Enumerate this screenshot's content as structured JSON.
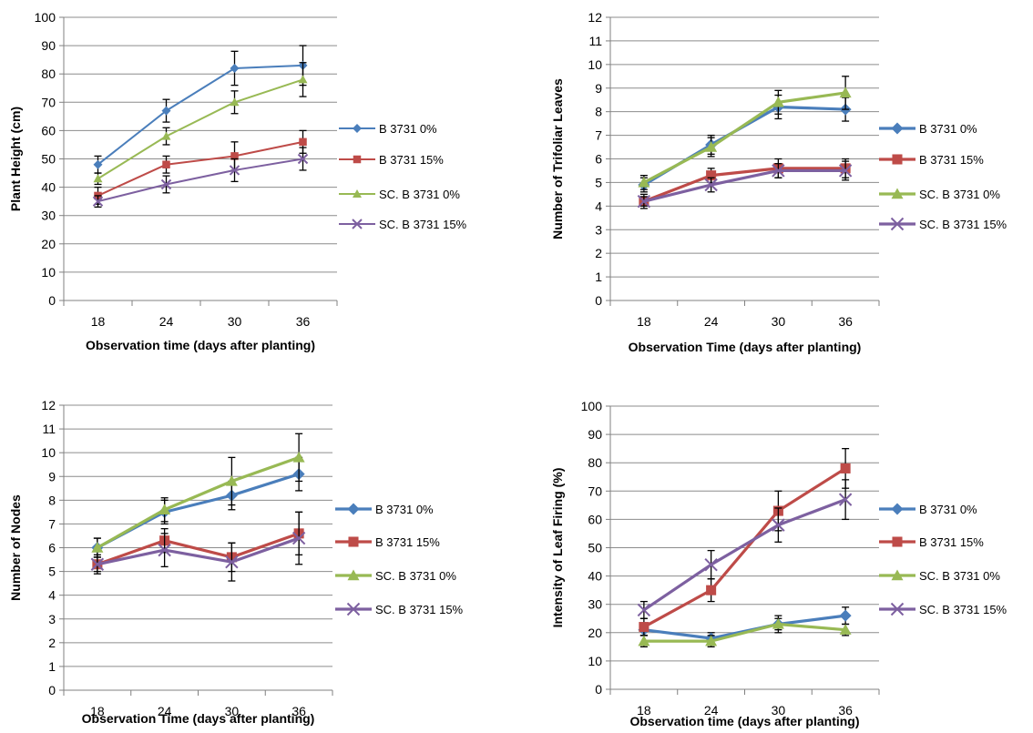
{
  "colors": {
    "B 3731 0%": "#4a7ebb",
    "B 3731 15%": "#be4b48",
    "SC. B 3731 0%": "#98b954",
    "SC. B 3731 15%": "#7d60a0",
    "grid": "#8c8c8c",
    "axis": "#808080",
    "errorbar": "#000000"
  },
  "chart_data": [
    {
      "type": "line",
      "xlabel": "Observation time (days after planting)",
      "ylabel": "Plant Height (cm)",
      "categories": [
        "18",
        "24",
        "30",
        "36"
      ],
      "ylim": [
        0,
        100
      ],
      "ytick_step": 10,
      "grid": true,
      "legend": "right",
      "series": [
        {
          "name": "B 3731 0%",
          "marker": "diamond",
          "values": [
            48,
            67,
            82,
            83
          ],
          "errors": [
            3,
            4,
            6,
            7
          ]
        },
        {
          "name": "B 3731 15%",
          "marker": "square",
          "values": [
            37,
            48,
            51,
            56
          ],
          "errors": [
            3,
            3,
            5,
            4
          ]
        },
        {
          "name": "SC. B 3731 0%",
          "marker": "triangle",
          "values": [
            43,
            58,
            70,
            78
          ],
          "errors": [
            2,
            3,
            4,
            6
          ]
        },
        {
          "name": "SC. B 3731 15%",
          "marker": "x",
          "values": [
            35,
            41,
            46,
            50
          ],
          "errors": [
            2,
            3,
            4,
            4
          ]
        }
      ]
    },
    {
      "type": "line",
      "xlabel": "Observation Time (days after planting)",
      "ylabel": "Number of Trifoliar Leaves",
      "categories": [
        "18",
        "24",
        "30",
        "36"
      ],
      "ylim": [
        0,
        12
      ],
      "ytick_step": 1,
      "grid": true,
      "legend": "right",
      "series": [
        {
          "name": "B 3731 0%",
          "marker": "diamond",
          "values": [
            4.9,
            6.6,
            8.2,
            8.1
          ],
          "errors": [
            0.3,
            0.4,
            0.5,
            0.5
          ]
        },
        {
          "name": "B 3731 15%",
          "marker": "square",
          "values": [
            4.2,
            5.3,
            5.6,
            5.6
          ],
          "errors": [
            0.3,
            0.3,
            0.4,
            0.4
          ]
        },
        {
          "name": "SC. B 3731 0%",
          "marker": "triangle",
          "values": [
            5.0,
            6.5,
            8.4,
            8.8
          ],
          "errors": [
            0.3,
            0.4,
            0.5,
            0.7
          ]
        },
        {
          "name": "SC. B 3731 15%",
          "marker": "x",
          "values": [
            4.2,
            4.9,
            5.5,
            5.5
          ],
          "errors": [
            0.2,
            0.3,
            0.3,
            0.4
          ]
        }
      ]
    },
    {
      "type": "line",
      "xlabel": "Observation Time (days after planting)",
      "ylabel": "Number of Nodes",
      "categories": [
        "18",
        "24",
        "30",
        "36"
      ],
      "ylim": [
        0,
        12
      ],
      "ytick_step": 1,
      "grid": true,
      "legend": "right",
      "series": [
        {
          "name": "B 3731 0%",
          "marker": "diamond",
          "values": [
            6.0,
            7.5,
            8.2,
            9.1
          ],
          "errors": [
            0.4,
            0.5,
            0.6,
            0.7
          ]
        },
        {
          "name": "B 3731 15%",
          "marker": "square",
          "values": [
            5.3,
            6.3,
            5.6,
            6.6
          ],
          "errors": [
            0.4,
            0.5,
            0.6,
            0.9
          ]
        },
        {
          "name": "SC. B 3731 0%",
          "marker": "triangle",
          "values": [
            6.0,
            7.6,
            8.8,
            9.8
          ],
          "errors": [
            0.4,
            0.5,
            1.0,
            1.0
          ]
        },
        {
          "name": "SC. B 3731 15%",
          "marker": "x",
          "values": [
            5.3,
            5.9,
            5.4,
            6.4
          ],
          "errors": [
            0.3,
            0.7,
            0.8,
            1.1
          ]
        }
      ]
    },
    {
      "type": "line",
      "xlabel": "Observation time (days after planting)",
      "ylabel": "Intensity of Leaf Firing (%)",
      "categories": [
        "18",
        "24",
        "30",
        "36"
      ],
      "ylim": [
        0,
        100
      ],
      "ytick_step": 10,
      "grid": true,
      "legend": "right",
      "series": [
        {
          "name": "B 3731 0%",
          "marker": "diamond",
          "values": [
            21,
            18,
            23,
            26
          ],
          "errors": [
            2,
            2,
            3,
            3
          ]
        },
        {
          "name": "B 3731 15%",
          "marker": "square",
          "values": [
            22,
            35,
            63,
            78
          ],
          "errors": [
            3,
            4,
            7,
            7
          ]
        },
        {
          "name": "SC. B 3731 0%",
          "marker": "triangle",
          "values": [
            17,
            17,
            23,
            21
          ],
          "errors": [
            2,
            2,
            2,
            2
          ]
        },
        {
          "name": "SC. B 3731 15%",
          "marker": "x",
          "values": [
            28,
            44,
            58,
            67
          ],
          "errors": [
            3,
            5,
            6,
            7
          ]
        }
      ]
    }
  ]
}
